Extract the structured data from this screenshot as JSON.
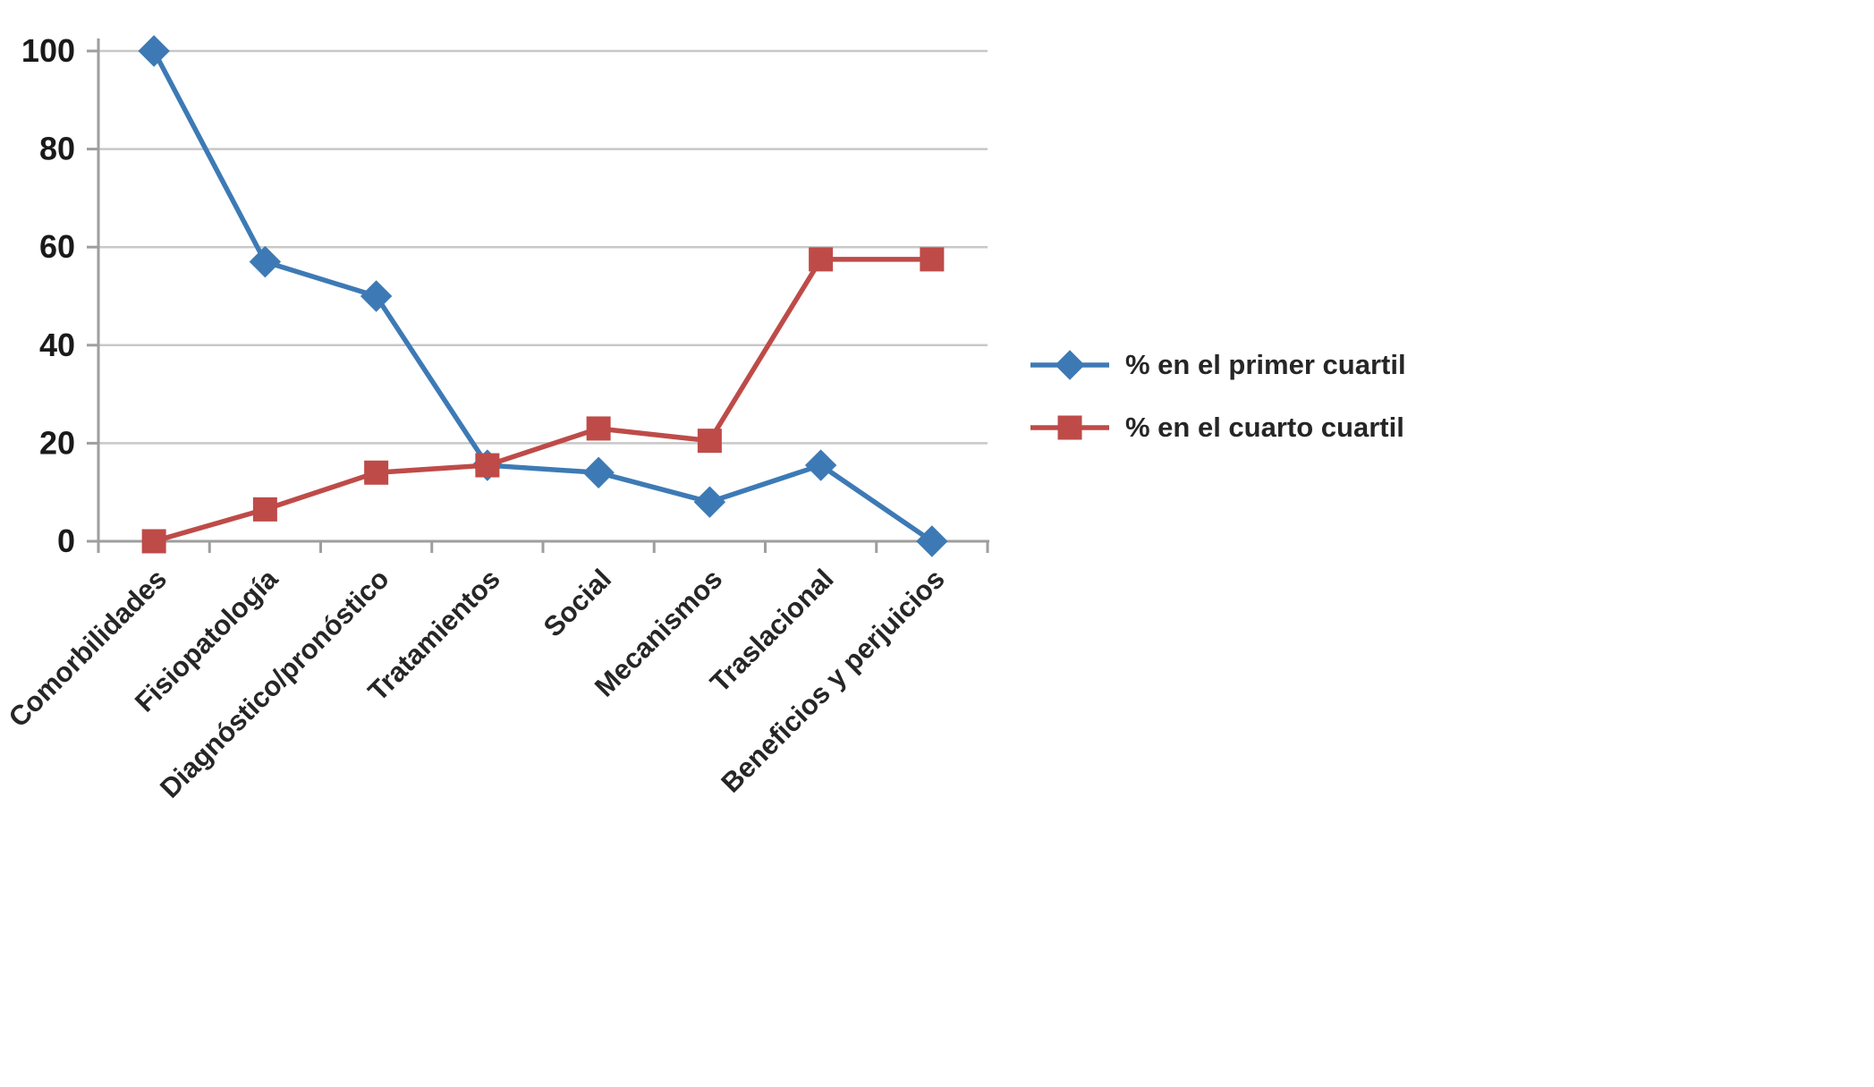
{
  "chart_data": {
    "type": "line",
    "title": "",
    "xlabel": "",
    "ylabel": "",
    "categories": [
      "Comorbilidades",
      "Fisiopatología",
      "Diagnóstico/pronóstico",
      "Tratamientos",
      "Social",
      "Mecanismos",
      "Traslacional",
      "Beneficios y perjuicios"
    ],
    "series": [
      {
        "name": "% en el primer cuartil",
        "marker": "diamond",
        "color": "#3D7AB5",
        "values": [
          100,
          57,
          50,
          15.5,
          14,
          8,
          15.5,
          0
        ]
      },
      {
        "name": "% en el cuarto cuartil",
        "marker": "square",
        "color": "#BE4B48",
        "values": [
          0,
          6.5,
          14,
          15.5,
          23,
          20.5,
          57.5,
          57.5
        ]
      }
    ],
    "ylim": [
      0,
      100
    ],
    "yticks": [
      0,
      20,
      40,
      60,
      80,
      100
    ],
    "grid": true,
    "legend_position": "right",
    "style": {
      "grid_color": "#C8C8C8",
      "axis_color": "#9E9E9E",
      "tick_color": "#9E9E9E",
      "text_color": "#262626",
      "background": "#FFFFFF"
    }
  }
}
